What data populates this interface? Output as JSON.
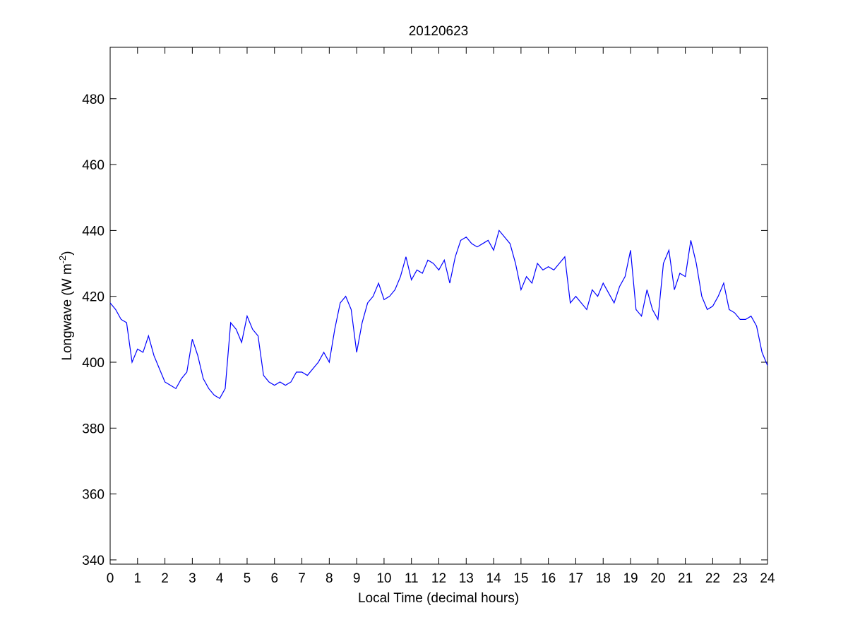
{
  "chart_data": {
    "type": "line",
    "title": "20120623",
    "xlabel": "Local Time (decimal hours)",
    "ylabel": "Longwave (W m",
    "ylabel_sup": "-2",
    "ylabel_end": ")",
    "xlim": [
      0,
      24
    ],
    "ylim": [
      338.7,
      495.6
    ],
    "xticks": [
      0,
      1,
      2,
      3,
      4,
      5,
      6,
      7,
      8,
      9,
      10,
      11,
      12,
      13,
      14,
      15,
      16,
      17,
      18,
      19,
      20,
      21,
      22,
      23,
      24
    ],
    "yticks": [
      340,
      360,
      380,
      400,
      420,
      440,
      460,
      480
    ],
    "grid": false,
    "x": [
      0,
      0.2,
      0.4,
      0.6,
      0.8,
      1,
      1.2,
      1.4,
      1.6,
      1.8,
      2,
      2.2,
      2.4,
      2.6,
      2.8,
      3,
      3.2,
      3.4,
      3.6,
      3.8,
      4,
      4.2,
      4.4,
      4.6,
      4.8,
      5,
      5.2,
      5.4,
      5.6,
      5.8,
      6,
      6.2,
      6.4,
      6.6,
      6.8,
      7,
      7.2,
      7.4,
      7.6,
      7.8,
      8,
      8.2,
      8.4,
      8.6,
      8.8,
      9,
      9.2,
      9.4,
      9.6,
      9.8,
      10,
      10.2,
      10.4,
      10.6,
      10.8,
      11,
      11.2,
      11.4,
      11.6,
      11.8,
      12,
      12.2,
      12.4,
      12.6,
      12.8,
      13,
      13.2,
      13.4,
      13.6,
      13.8,
      14,
      14.2,
      14.4,
      14.6,
      14.8,
      15,
      15.2,
      15.4,
      15.6,
      15.8,
      16,
      16.2,
      16.4,
      16.6,
      16.8,
      17,
      17.2,
      17.4,
      17.6,
      17.8,
      18,
      18.2,
      18.4,
      18.6,
      18.8,
      19,
      19.2,
      19.4,
      19.6,
      19.8,
      20,
      20.2,
      20.4,
      20.6,
      20.8,
      21,
      21.2,
      21.4,
      21.6,
      21.8,
      22,
      22.2,
      22.4,
      22.6,
      22.8,
      23,
      23.2,
      23.4,
      23.6,
      23.8,
      24
    ],
    "series": [
      {
        "color": "#0000ff",
        "values": [
          418,
          416,
          413,
          412,
          400,
          404,
          403,
          408,
          402,
          398,
          394,
          393,
          392,
          395,
          397,
          407,
          402,
          395,
          392,
          390,
          389,
          392,
          412,
          410,
          406,
          414,
          410,
          408,
          396,
          394,
          393,
          394,
          393,
          394,
          397,
          397,
          396,
          398,
          400,
          403,
          400,
          410,
          418,
          420,
          416,
          403,
          412,
          418,
          420,
          424,
          419,
          420,
          422,
          426,
          432,
          425,
          428,
          427,
          431,
          430,
          428,
          431,
          424,
          432,
          437,
          438,
          436,
          435,
          436,
          437,
          434,
          440,
          438,
          436,
          430,
          422,
          426,
          424,
          430,
          428,
          429,
          428,
          430,
          432,
          418,
          420,
          418,
          416,
          422,
          420,
          424,
          421,
          418,
          423,
          426,
          434,
          416,
          414,
          422,
          416,
          413,
          430,
          434,
          422,
          427,
          426,
          437,
          430,
          420,
          416,
          417,
          420,
          424,
          416,
          415,
          413,
          413,
          414,
          411,
          403,
          399
        ]
      }
    ]
  }
}
